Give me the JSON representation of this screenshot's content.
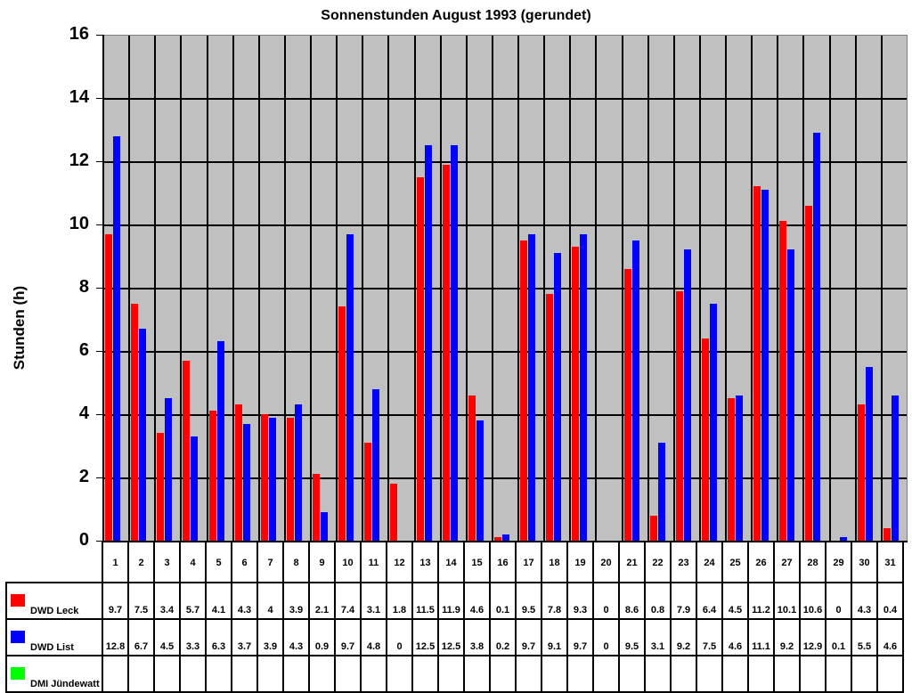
{
  "chart_data": {
    "type": "bar",
    "title": "Sonnenstunden August 1993 (gerundet)",
    "xlabel": "",
    "ylabel": "Stunden (h)",
    "ylim": [
      0,
      16
    ],
    "yticks": [
      0,
      2,
      4,
      6,
      8,
      10,
      12,
      14,
      16
    ],
    "grid": true,
    "legend_position": "data-table-left",
    "categories": [
      "1",
      "2",
      "3",
      "4",
      "5",
      "6",
      "7",
      "8",
      "9",
      "10",
      "11",
      "12",
      "13",
      "14",
      "15",
      "16",
      "17",
      "18",
      "19",
      "20",
      "21",
      "22",
      "23",
      "24",
      "25",
      "26",
      "27",
      "28",
      "29",
      "30",
      "31"
    ],
    "series": [
      {
        "name": "DWD Leck",
        "color": "#ff0000",
        "values": [
          9.7,
          7.5,
          3.4,
          5.7,
          4.1,
          4.3,
          4,
          3.9,
          2.1,
          7.4,
          3.1,
          1.8,
          11.5,
          11.9,
          4.6,
          0.1,
          9.5,
          7.8,
          9.3,
          0,
          8.6,
          0.8,
          7.9,
          6.4,
          4.5,
          11.2,
          10.1,
          10.6,
          0,
          4.3,
          0.4
        ]
      },
      {
        "name": "DWD List",
        "color": "#0000ff",
        "values": [
          12.8,
          6.7,
          4.5,
          3.3,
          6.3,
          3.7,
          3.9,
          4.3,
          0.9,
          9.7,
          4.8,
          0,
          12.5,
          12.5,
          3.8,
          0.2,
          9.7,
          9.1,
          9.7,
          0,
          9.5,
          3.1,
          9.2,
          7.5,
          4.6,
          11.1,
          9.2,
          12.9,
          0.1,
          5.5,
          4.6
        ]
      },
      {
        "name": "DMI Jündewatt",
        "color": "#00ff00",
        "values": [
          null,
          null,
          null,
          null,
          null,
          null,
          null,
          null,
          null,
          null,
          null,
          null,
          null,
          null,
          null,
          null,
          null,
          null,
          null,
          null,
          null,
          null,
          null,
          null,
          null,
          null,
          null,
          null,
          null,
          null,
          null
        ]
      }
    ]
  },
  "table_labels": {
    "series": [
      "1",
      "2",
      "3",
      "4",
      "5",
      "6",
      "7",
      "8",
      "9",
      "10",
      "11",
      "12",
      "13",
      "14",
      "15",
      "16",
      "17",
      "18",
      "19",
      "20",
      "21",
      "22",
      "23",
      "24",
      "25",
      "26",
      "27",
      "28",
      "29",
      "30",
      "31"
    ],
    "rows": [
      [
        "9.7",
        "7.5",
        "3.4",
        "5.7",
        "4.1",
        "4.3",
        "4",
        "3.9",
        "2.1",
        "7.4",
        "3.1",
        "1.8",
        "11.5",
        "11.9",
        "4.6",
        "0.1",
        "9.5",
        "7.8",
        "9.3",
        "0",
        "8.6",
        "0.8",
        "7.9",
        "6.4",
        "4.5",
        "11.2",
        "10.1",
        "10.6",
        "0",
        "4.3",
        "0.4"
      ],
      [
        "12.8",
        "6.7",
        "4.5",
        "3.3",
        "6.3",
        "3.7",
        "3.9",
        "4.3",
        "0.9",
        "9.7",
        "4.8",
        "0",
        "12.5",
        "12.5",
        "3.8",
        "0.2",
        "9.7",
        "9.1",
        "9.7",
        "0",
        "9.5",
        "3.1",
        "9.2",
        "7.5",
        "4.6",
        "11.1",
        "9.2",
        "12.9",
        "0.1",
        "5.5",
        "4.6"
      ],
      [
        "",
        "",
        "",
        "",
        "",
        "",
        "",
        "",
        "",
        "",
        "",
        "",
        "",
        "",
        "",
        "",
        "",
        "",
        "",
        "",
        "",
        "",
        "",
        "",
        "",
        "",
        "",
        "",
        "",
        "",
        ""
      ]
    ]
  }
}
